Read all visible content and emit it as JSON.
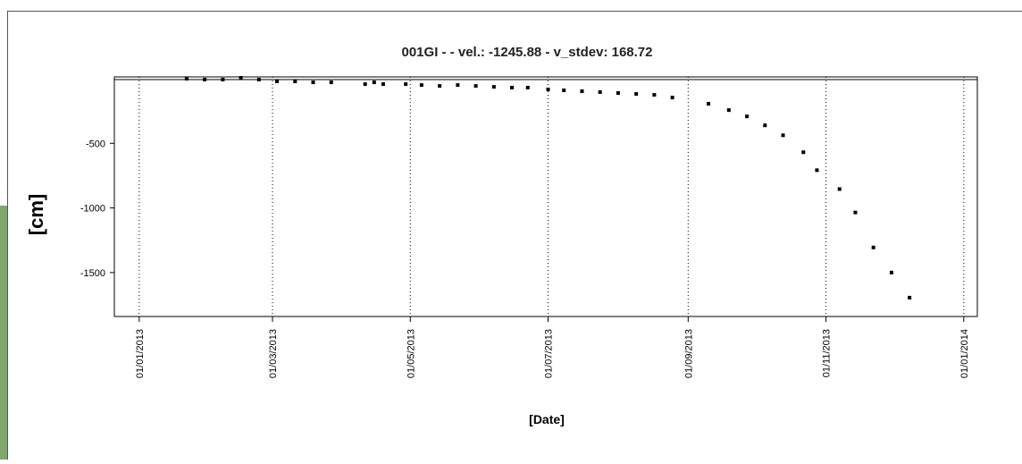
{
  "chart_data": {
    "type": "scatter",
    "title": "001GI -  - vel.: -1245.88 - v_stdev: 168.72",
    "x_label": "[Date]",
    "y_label": "[cm]",
    "x": [
      "2013-01-22",
      "2013-01-30",
      "2013-02-07",
      "2013-02-15",
      "2013-02-23",
      "2013-03-03",
      "2013-03-11",
      "2013-03-19",
      "2013-03-27",
      "2013-04-11",
      "2013-04-15",
      "2013-04-19",
      "2013-04-29",
      "2013-05-06",
      "2013-05-14",
      "2013-05-22",
      "2013-05-30",
      "2013-06-07",
      "2013-06-15",
      "2013-06-22",
      "2013-07-01",
      "2013-07-08",
      "2013-07-16",
      "2013-07-24",
      "2013-08-01",
      "2013-08-09",
      "2013-08-17",
      "2013-08-25",
      "2013-09-10",
      "2013-09-19",
      "2013-09-27",
      "2013-10-05",
      "2013-10-13",
      "2013-10-22",
      "2013-10-28",
      "2013-11-07",
      "2013-11-14",
      "2013-11-22",
      "2013-11-30",
      "2013-12-08"
    ],
    "values": [
      0,
      -7,
      -7,
      7,
      -7,
      -21,
      -21,
      -28,
      -28,
      -42,
      -28,
      -42,
      -42,
      -49,
      -56,
      -49,
      -56,
      -63,
      -69,
      -69,
      -83,
      -90,
      -97,
      -104,
      -111,
      -118,
      -125,
      -146,
      -194,
      -243,
      -292,
      -361,
      -438,
      -569,
      -708,
      -854,
      -1035,
      -1306,
      -1500,
      -1694
    ],
    "color": "#000000",
    "xlim": [
      "2012-12-21",
      "2014-01-07"
    ],
    "xticks": [
      {
        "value": "2013-01-01",
        "label": "01/01/2013"
      },
      {
        "value": "2013-03-01",
        "label": "01/03/2013"
      },
      {
        "value": "2013-05-01",
        "label": "01/05/2013"
      },
      {
        "value": "2013-07-01",
        "label": "01/07/2013"
      },
      {
        "value": "2013-09-01",
        "label": "01/09/2013"
      },
      {
        "value": "2013-11-01",
        "label": "01/11/2013"
      },
      {
        "value": "2014-01-01",
        "label": "01/01/2014"
      }
    ],
    "ylim": [
      -1840,
      14
    ],
    "yticks": [
      -1500,
      -1000,
      -500
    ],
    "grid": true
  }
}
